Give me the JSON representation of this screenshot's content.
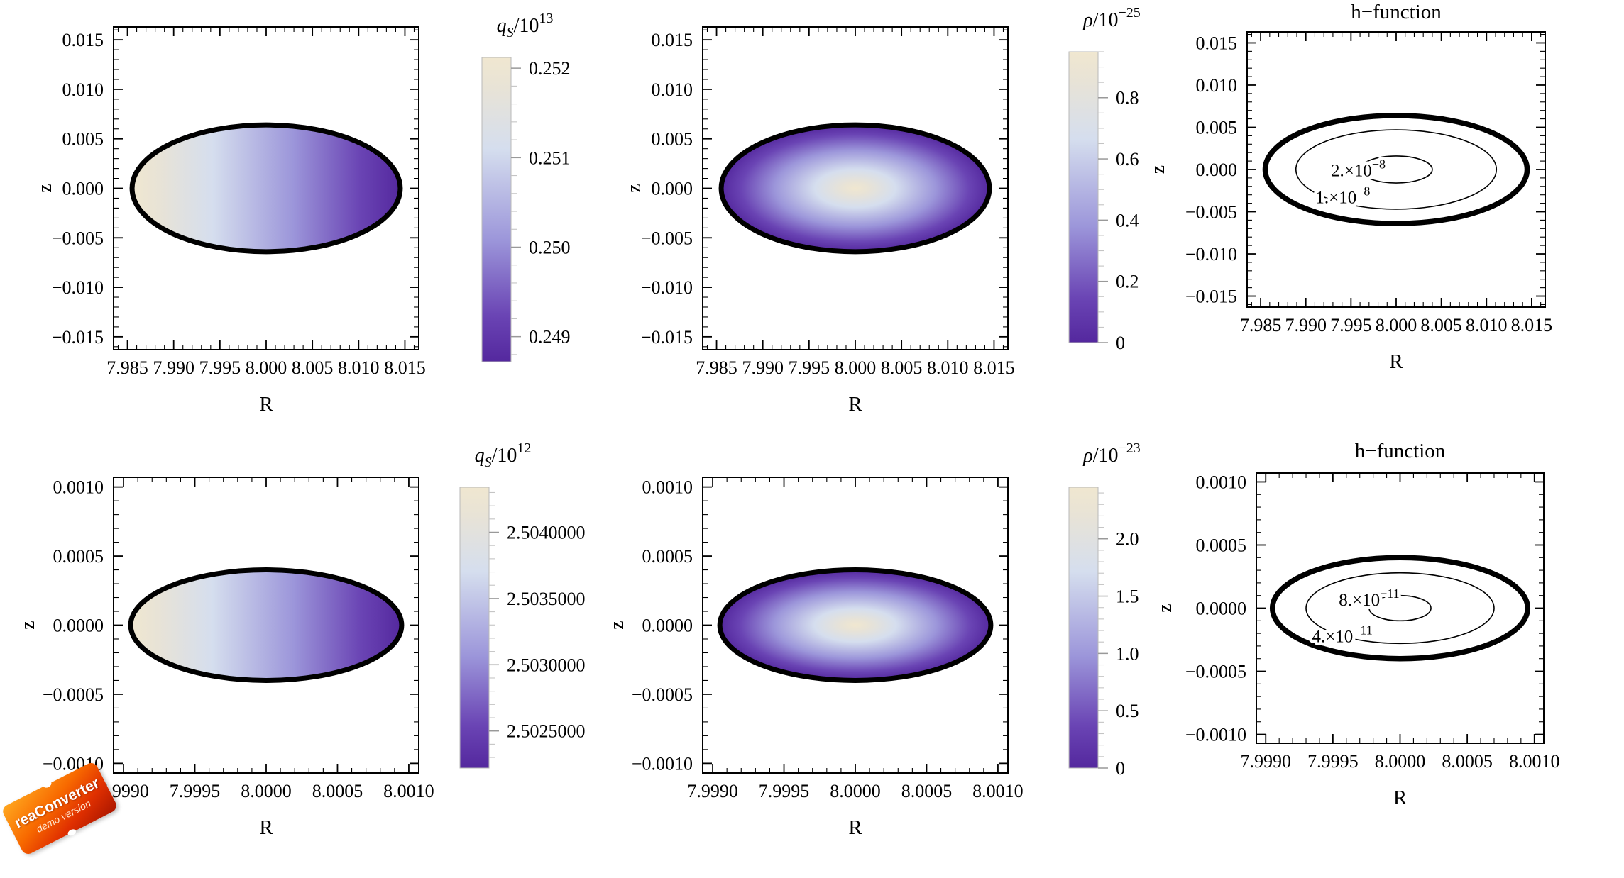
{
  "watermark": {
    "line1": "reaConverter",
    "line2": "demo version"
  },
  "colors": {
    "stroke": "#000000",
    "frame": "#000000",
    "colorbar_frame": "#b9b9b9",
    "colormap": [
      {
        "v": 0.0,
        "c": "#54289e"
      },
      {
        "v": 0.15,
        "c": "#6a44b4"
      },
      {
        "v": 0.4,
        "c": "#9c96da"
      },
      {
        "v": 0.7,
        "c": "#d5deee"
      },
      {
        "v": 0.9,
        "c": "#e8e3d6"
      },
      {
        "v": 1.0,
        "c": "#f0e7d0"
      }
    ]
  },
  "chart_data": [
    {
      "id": "qs-top",
      "type": "density",
      "gradient": "horizontal",
      "xlabel": "R",
      "ylabel": "z",
      "xlim": [
        7.9835,
        8.0165
      ],
      "ylim": [
        -0.0163,
        0.0163
      ],
      "x_ticks": {
        "values": [
          7.985,
          7.99,
          7.995,
          8.0,
          8.005,
          8.01,
          8.015
        ],
        "labels": [
          "7.985",
          "7.990",
          "7.995",
          "8.000",
          "8.005",
          "8.010",
          "8.015"
        ]
      },
      "y_ticks": {
        "values": [
          0.015,
          0.01,
          0.005,
          0.0,
          -0.005,
          -0.01,
          -0.015
        ],
        "labels": [
          "0.015",
          "0.010",
          "0.005",
          "0.000",
          "−0.005",
          "−0.010",
          "−0.015"
        ]
      },
      "x_minor_step": 0.001,
      "y_minor_step": 0.001,
      "ellipse": {
        "cx": 8.0,
        "cy": 0.0,
        "rx": 0.0145,
        "ry": 0.0064
      },
      "colorbar": {
        "title": {
          "base": "q",
          "sub": "S",
          "mid": "/10",
          "exp": "13"
        },
        "range": [
          0.24872,
          0.25212
        ],
        "ticks": {
          "values": [
            0.252,
            0.251,
            0.25,
            0.249
          ],
          "labels": [
            "0.252",
            "0.251",
            "0.250",
            "0.249"
          ]
        },
        "minor_step": 0.0002
      }
    },
    {
      "id": "rho-top",
      "type": "density",
      "gradient": "radial",
      "xlabel": "R",
      "ylabel": "z",
      "xlim": [
        7.9835,
        8.0165
      ],
      "ylim": [
        -0.0163,
        0.0163
      ],
      "x_ticks": {
        "values": [
          7.985,
          7.99,
          7.995,
          8.0,
          8.005,
          8.01,
          8.015
        ],
        "labels": [
          "7.985",
          "7.990",
          "7.995",
          "8.000",
          "8.005",
          "8.010",
          "8.015"
        ]
      },
      "y_ticks": {
        "values": [
          0.015,
          0.01,
          0.005,
          0.0,
          -0.005,
          -0.01,
          -0.015
        ],
        "labels": [
          "0.015",
          "0.010",
          "0.005",
          "0.000",
          "−0.005",
          "−0.010",
          "−0.015"
        ]
      },
      "x_minor_step": 0.001,
      "y_minor_step": 0.001,
      "ellipse": {
        "cx": 8.0,
        "cy": 0.0,
        "rx": 0.0145,
        "ry": 0.0064
      },
      "colorbar": {
        "title": {
          "base": "ρ",
          "sub": "",
          "mid": "/10",
          "exp": "−25"
        },
        "range": [
          0.0,
          0.95
        ],
        "ticks": {
          "values": [
            0.8,
            0.6,
            0.4,
            0.2,
            0.0
          ],
          "labels": [
            "0.8",
            "0.6",
            "0.4",
            "0.2",
            "0"
          ]
        },
        "minor_step": 0.05
      }
    },
    {
      "id": "h-top",
      "type": "contour",
      "title": "h−function",
      "xlabel": "R",
      "ylabel": "z",
      "xlim": [
        7.9835,
        8.0165
      ],
      "ylim": [
        -0.0163,
        0.0163
      ],
      "x_ticks": {
        "values": [
          7.985,
          7.99,
          7.995,
          8.0,
          8.005,
          8.01,
          8.015
        ],
        "labels": [
          "7.985",
          "7.990",
          "7.995",
          "8.000",
          "8.005",
          "8.010",
          "8.015"
        ]
      },
      "y_ticks": {
        "values": [
          0.015,
          0.01,
          0.005,
          0.0,
          -0.005,
          -0.01,
          -0.015
        ],
        "labels": [
          "0.015",
          "0.010",
          "0.005",
          "0.000",
          "−0.005",
          "−0.010",
          "−0.015"
        ]
      },
      "x_minor_step": 0.001,
      "y_minor_step": 0.001,
      "contours": [
        {
          "cx": 8.0,
          "cy": 0.0,
          "rx": 0.0145,
          "ry": 0.0064,
          "thick": true
        },
        {
          "cx": 8.0,
          "cy": 0.0,
          "rx": 0.0111,
          "ry": 0.0047,
          "thick": false,
          "label": {
            "main": "1.×10",
            "exp": "−8"
          },
          "at": [
            7.9941,
            -0.004
          ]
        },
        {
          "cx": 8.0,
          "cy": 0.0,
          "rx": 0.004,
          "ry": 0.0016,
          "thick": false,
          "label": {
            "main": "2.×10",
            "exp": "−8"
          },
          "at": [
            7.9958,
            -0.0008
          ]
        }
      ]
    },
    {
      "id": "qs-bottom",
      "type": "density",
      "gradient": "horizontal",
      "xlabel": "R",
      "ylabel": "z",
      "xlim": [
        7.99893,
        8.00107
      ],
      "ylim": [
        -0.00107,
        0.00107
      ],
      "x_ticks": {
        "values": [
          7.999,
          7.9995,
          8.0,
          8.0005,
          8.001
        ],
        "labels": [
          "7.9990",
          "7.9995",
          "8.0000",
          "8.0005",
          "8.0010"
        ]
      },
      "y_ticks": {
        "values": [
          0.001,
          0.0005,
          0.0,
          -0.0005,
          -0.001
        ],
        "labels": [
          "0.0010",
          "0.0005",
          "0.0000",
          "−0.0005",
          "−0.0010"
        ]
      },
      "x_minor_step": 0.0001,
      "y_minor_step": 0.0001,
      "ellipse": {
        "cx": 8.0,
        "cy": 0.0,
        "rx": 0.00095,
        "ry": 0.0004
      },
      "colorbar": {
        "title": {
          "base": "q",
          "sub": "S",
          "mid": "/10",
          "exp": "12"
        },
        "range": [
          2.50222,
          2.50434
        ],
        "ticks": {
          "values": [
            2.504,
            2.5035,
            2.503,
            2.5025
          ],
          "labels": [
            "2.5040000",
            "2.5035000",
            "2.5030000",
            "2.5025000"
          ]
        },
        "minor_step": 0.0001
      }
    },
    {
      "id": "rho-bottom",
      "type": "density",
      "gradient": "radial",
      "xlabel": "R",
      "ylabel": "z",
      "xlim": [
        7.99893,
        8.00107
      ],
      "ylim": [
        -0.00107,
        0.00107
      ],
      "x_ticks": {
        "values": [
          7.999,
          7.9995,
          8.0,
          8.0005,
          8.001
        ],
        "labels": [
          "7.9990",
          "7.9995",
          "8.0000",
          "8.0005",
          "8.0010"
        ]
      },
      "y_ticks": {
        "values": [
          0.001,
          0.0005,
          0.0,
          -0.0005,
          -0.001
        ],
        "labels": [
          "0.0010",
          "0.0005",
          "0.0000",
          "−0.0005",
          "−0.0010"
        ]
      },
      "x_minor_step": 0.0001,
      "y_minor_step": 0.0001,
      "ellipse": {
        "cx": 8.0,
        "cy": 0.0,
        "rx": 0.00095,
        "ry": 0.0004
      },
      "colorbar": {
        "title": {
          "base": "ρ",
          "sub": "",
          "mid": "/10",
          "exp": "−23"
        },
        "range": [
          0.0,
          2.45
        ],
        "ticks": {
          "values": [
            2.0,
            1.5,
            1.0,
            0.5,
            0.0
          ],
          "labels": [
            "2.0",
            "1.5",
            "1.0",
            "0.5",
            "0"
          ]
        },
        "minor_step": 0.1
      }
    },
    {
      "id": "h-bottom",
      "type": "contour",
      "title": "h−function",
      "xlabel": "R",
      "ylabel": "z",
      "xlim": [
        7.99893,
        8.00107
      ],
      "ylim": [
        -0.00107,
        0.00107
      ],
      "x_ticks": {
        "values": [
          7.999,
          7.9995,
          8.0,
          8.0005,
          8.001
        ],
        "labels": [
          "7.9990",
          "7.9995",
          "8.0000",
          "8.0005",
          "8.0010"
        ]
      },
      "y_ticks": {
        "values": [
          0.001,
          0.0005,
          0.0,
          -0.0005,
          -0.001
        ],
        "labels": [
          "0.0010",
          "0.0005",
          "0.0000",
          "−0.0005",
          "−0.0010"
        ]
      },
      "x_minor_step": 0.0001,
      "y_minor_step": 0.0001,
      "contours": [
        {
          "cx": 8.0,
          "cy": 0.0,
          "rx": 0.00095,
          "ry": 0.0004,
          "thick": true
        },
        {
          "cx": 8.0,
          "cy": 0.0,
          "rx": 0.0007,
          "ry": 0.00028,
          "thick": false,
          "label": {
            "main": "4.×10",
            "exp": "−11"
          },
          "at": [
            7.99957,
            -0.00027
          ]
        },
        {
          "cx": 8.0,
          "cy": 0.0,
          "rx": 0.00023,
          "ry": 0.0001,
          "thick": false,
          "label": {
            "main": "8.×10",
            "exp": "−11"
          },
          "at": [
            7.99977,
            2e-05
          ]
        }
      ]
    }
  ]
}
